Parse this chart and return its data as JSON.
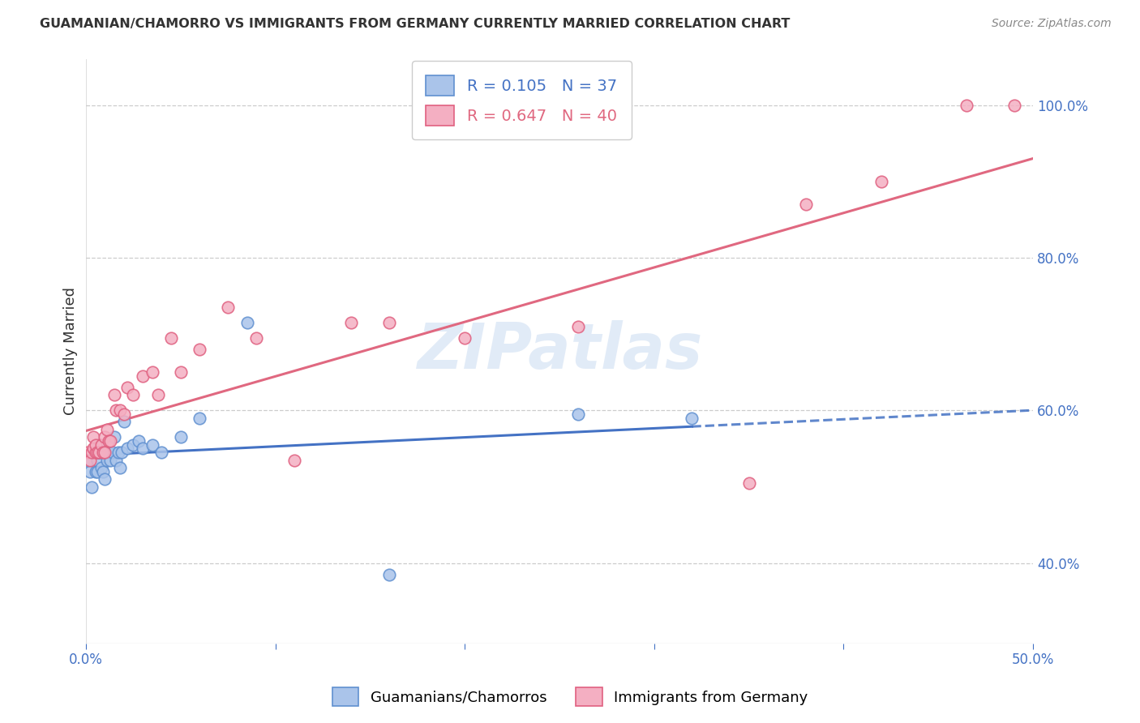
{
  "title": "GUAMANIAN/CHAMORRO VS IMMIGRANTS FROM GERMANY CURRENTLY MARRIED CORRELATION CHART",
  "source": "Source: ZipAtlas.com",
  "ylabel": "Currently Married",
  "x_min": 0.0,
  "x_max": 0.5,
  "y_min": 0.295,
  "y_max": 1.06,
  "x_ticks": [
    0.0,
    0.1,
    0.2,
    0.3,
    0.4,
    0.5
  ],
  "x_tick_labels": [
    "0.0%",
    "",
    "",
    "",
    "",
    "50.0%"
  ],
  "y_ticks": [
    0.4,
    0.6,
    0.8,
    1.0
  ],
  "y_tick_labels": [
    "40.0%",
    "60.0%",
    "80.0%",
    "100.0%"
  ],
  "blue_R": 0.105,
  "blue_N": 37,
  "pink_R": 0.647,
  "pink_N": 40,
  "blue_color": "#aac4ea",
  "pink_color": "#f4afc2",
  "blue_edge_color": "#6090d0",
  "pink_edge_color": "#e06080",
  "blue_line_color": "#4472c4",
  "pink_line_color": "#e06880",
  "watermark": "ZIPatlas",
  "legend_label_blue": "Guamanians/Chamorros",
  "legend_label_pink": "Immigrants from Germany",
  "blue_scatter_x": [
    0.001,
    0.002,
    0.003,
    0.004,
    0.005,
    0.005,
    0.006,
    0.006,
    0.007,
    0.007,
    0.008,
    0.008,
    0.009,
    0.01,
    0.01,
    0.011,
    0.012,
    0.013,
    0.014,
    0.015,
    0.016,
    0.017,
    0.018,
    0.019,
    0.02,
    0.022,
    0.025,
    0.028,
    0.03,
    0.035,
    0.04,
    0.05,
    0.06,
    0.085,
    0.16,
    0.26,
    0.32
  ],
  "blue_scatter_y": [
    0.535,
    0.52,
    0.5,
    0.545,
    0.52,
    0.545,
    0.52,
    0.535,
    0.545,
    0.555,
    0.525,
    0.545,
    0.52,
    0.51,
    0.545,
    0.535,
    0.545,
    0.535,
    0.545,
    0.565,
    0.535,
    0.545,
    0.525,
    0.545,
    0.585,
    0.55,
    0.555,
    0.56,
    0.55,
    0.555,
    0.545,
    0.565,
    0.59,
    0.715,
    0.385,
    0.595,
    0.59
  ],
  "pink_scatter_x": [
    0.001,
    0.002,
    0.003,
    0.004,
    0.004,
    0.005,
    0.005,
    0.006,
    0.007,
    0.008,
    0.009,
    0.01,
    0.01,
    0.011,
    0.012,
    0.013,
    0.015,
    0.016,
    0.018,
    0.02,
    0.022,
    0.025,
    0.03,
    0.035,
    0.038,
    0.045,
    0.05,
    0.06,
    0.075,
    0.09,
    0.11,
    0.14,
    0.16,
    0.2,
    0.26,
    0.35,
    0.38,
    0.42,
    0.465,
    0.49
  ],
  "pink_scatter_y": [
    0.545,
    0.535,
    0.545,
    0.55,
    0.565,
    0.545,
    0.555,
    0.545,
    0.545,
    0.555,
    0.545,
    0.545,
    0.565,
    0.575,
    0.56,
    0.56,
    0.62,
    0.6,
    0.6,
    0.595,
    0.63,
    0.62,
    0.645,
    0.65,
    0.62,
    0.695,
    0.65,
    0.68,
    0.735,
    0.695,
    0.535,
    0.715,
    0.715,
    0.695,
    0.71,
    0.505,
    0.87,
    0.9,
    1.0,
    1.0
  ],
  "background_color": "#ffffff",
  "grid_color": "#cccccc",
  "grid_style": "--",
  "title_color": "#333333",
  "tick_label_color": "#4472c4"
}
